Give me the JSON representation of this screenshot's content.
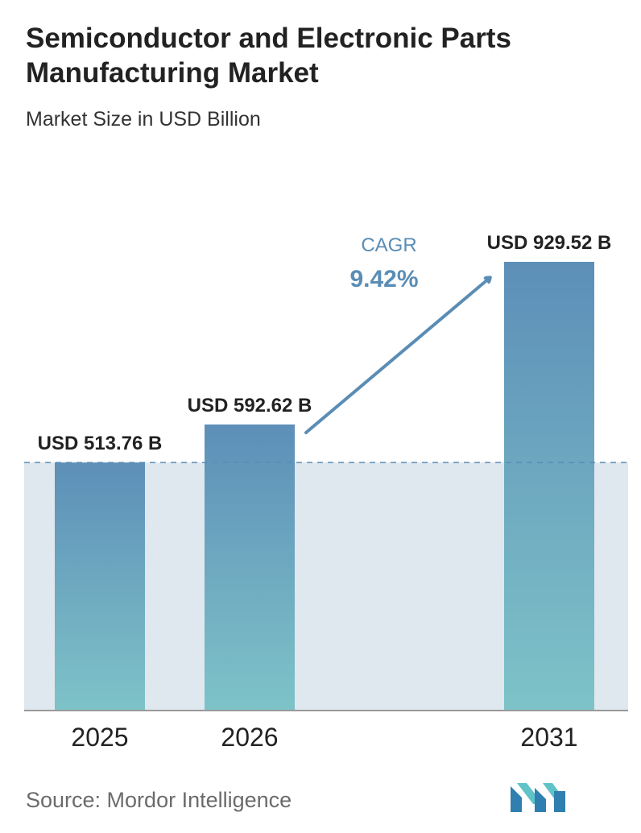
{
  "header": {
    "title": "Semiconductor and Electronic Parts Manufacturing Market",
    "subtitle": "Market Size in USD Billion"
  },
  "cagr": {
    "label": "CAGR",
    "value": "9.42%"
  },
  "footer": {
    "source": "Source:  Mordor Intelligence"
  },
  "colors": {
    "bar_top": "#5d8fb8",
    "bar_bottom": "#7ec3c8",
    "band": "#dfe7ef",
    "accent": "#5a8db5",
    "text": "#222222"
  },
  "logo_icon": "mordor-intelligence-logo-icon",
  "chart_data": {
    "type": "bar",
    "categories": [
      "2025",
      "2026",
      "2031"
    ],
    "values": [
      513.76,
      592.62,
      929.52
    ],
    "value_labels": [
      "USD 513.76 B",
      "USD 592.62 B",
      "USD 929.52 B"
    ],
    "title": "Semiconductor and Electronic Parts Manufacturing Market",
    "subtitle": "Market Size in USD Billion",
    "xlabel": "",
    "ylabel": "",
    "ylim": [
      0,
      929.52
    ],
    "grid": false,
    "reference_line": 513.76
  }
}
